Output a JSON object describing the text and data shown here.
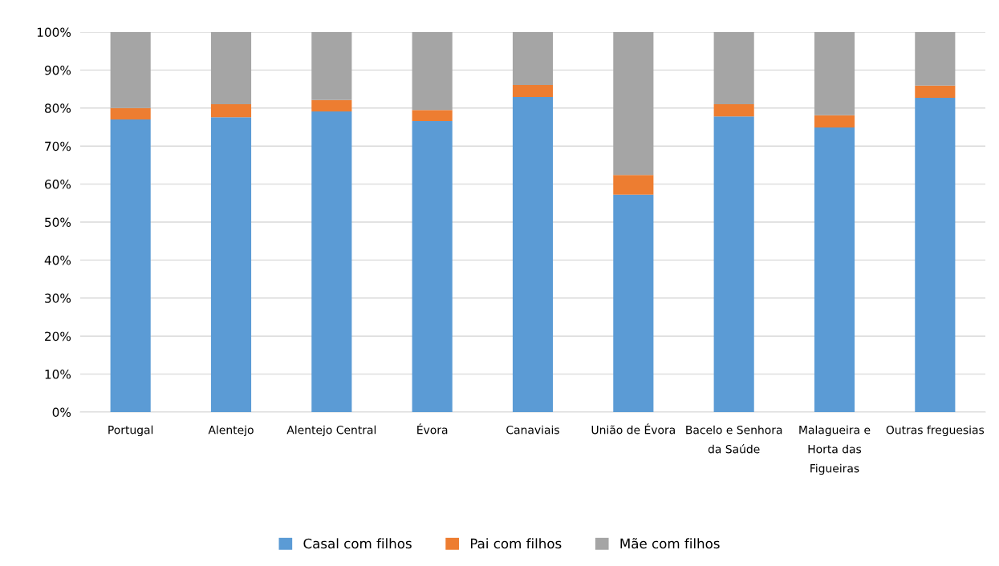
{
  "chart_data": {
    "type": "bar",
    "stacked": true,
    "categories": [
      "Portugal",
      "Alentejo",
      "Alentejo Central",
      "Évora",
      "Canaviais",
      "União de Évora",
      "Bacelo e Senhora\nda Saúde",
      "Malagueira e\nHorta das\nFigueiras",
      "Outras freguesias"
    ],
    "series": [
      {
        "name": "Casal com filhos",
        "color": "#5b9bd5",
        "values": [
          77.0,
          77.6,
          79.1,
          76.6,
          82.9,
          57.2,
          77.8,
          74.9,
          82.7
        ]
      },
      {
        "name": "Pai com filhos",
        "color": "#ed7d31",
        "values": [
          3.0,
          3.4,
          3.0,
          2.9,
          3.2,
          5.2,
          3.2,
          3.2,
          3.2
        ]
      },
      {
        "name": "Mãe com filhos",
        "color": "#a5a5a5",
        "values": [
          20.0,
          19.0,
          17.9,
          20.5,
          13.9,
          37.6,
          19.0,
          21.9,
          14.1
        ]
      }
    ],
    "ylim": [
      0,
      100
    ],
    "yticks": [
      {
        "value": 0,
        "label": "0%"
      },
      {
        "value": 10,
        "label": "10%"
      },
      {
        "value": 20,
        "label": "20%"
      },
      {
        "value": 30,
        "label": "30%"
      },
      {
        "value": 40,
        "label": "40%"
      },
      {
        "value": 50,
        "label": "50%"
      },
      {
        "value": 60,
        "label": "60%"
      },
      {
        "value": 70,
        "label": "70%"
      },
      {
        "value": 80,
        "label": "80%"
      },
      {
        "value": 90,
        "label": "90%"
      },
      {
        "value": 100,
        "label": "100%"
      }
    ],
    "grid": "y",
    "legend": "bottom"
  }
}
